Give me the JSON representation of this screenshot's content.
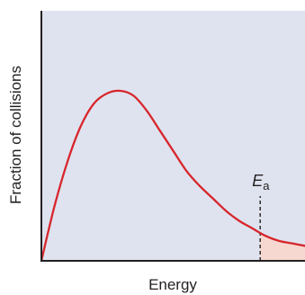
{
  "chart_data": {
    "type": "line",
    "title": "",
    "xlabel": "Energy",
    "ylabel": "Fraction of collisions",
    "xlim": [
      0,
      10
    ],
    "ylim": [
      0,
      1
    ],
    "grid": false,
    "series": [
      {
        "x": [
          0,
          0.5,
          1,
          1.5,
          2,
          2.5,
          3,
          3.5,
          4,
          4.5,
          5,
          5.5,
          6,
          6.5,
          7,
          7.5,
          8,
          8.5,
          9,
          9.5,
          10
        ],
        "y": [
          0,
          0.22,
          0.4,
          0.54,
          0.63,
          0.67,
          0.68,
          0.66,
          0.6,
          0.52,
          0.44,
          0.36,
          0.3,
          0.25,
          0.2,
          0.16,
          0.13,
          0.1,
          0.08,
          0.07,
          0.06
        ]
      }
    ],
    "annotations": [
      {
        "text_main": "E",
        "text_sub": "a",
        "x": 8.3,
        "style": "dashed-vertical-line",
        "shaded_region": "x >= 8.3 under curve"
      }
    ],
    "colors": {
      "background": "#dfe3ef",
      "curve": "#d7262c",
      "shade": "#f7d8d0",
      "axis": "#231f20",
      "text": "#231f20"
    }
  }
}
